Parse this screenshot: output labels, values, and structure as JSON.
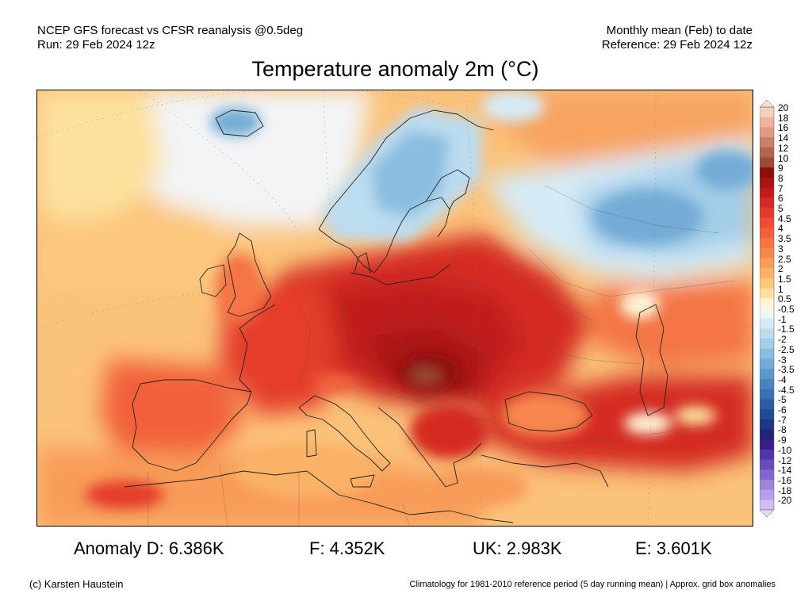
{
  "header": {
    "left_line1": "NCEP GFS forecast vs CFSR reanalysis @0.5deg",
    "left_line2": "Run: 29 Feb 2024 12z",
    "right_line1": "Monthly mean (Feb) to date",
    "right_line2": "Reference: 29 Feb 2024 12z"
  },
  "title": "Temperature anomaly 2m (°C)",
  "legend": {
    "levels": [
      {
        "label": "20",
        "color": "#f7cfc0"
      },
      {
        "label": "18",
        "color": "#eeb3a0"
      },
      {
        "label": "16",
        "color": "#df9a84"
      },
      {
        "label": "14",
        "color": "#cc7f68"
      },
      {
        "label": "12",
        "color": "#b4644e"
      },
      {
        "label": "10",
        "color": "#9c4c37"
      },
      {
        "label": "9",
        "color": "#8c0f0f"
      },
      {
        "label": "8",
        "color": "#a81414"
      },
      {
        "label": "7",
        "color": "#c01c1c"
      },
      {
        "label": "6",
        "color": "#d42a22"
      },
      {
        "label": "5",
        "color": "#e43c2c"
      },
      {
        "label": "4.5",
        "color": "#ec4e33"
      },
      {
        "label": "4",
        "color": "#f2603a"
      },
      {
        "label": "3.5",
        "color": "#f47444"
      },
      {
        "label": "3",
        "color": "#f6884e"
      },
      {
        "label": "2.5",
        "color": "#f89c58"
      },
      {
        "label": "2",
        "color": "#fab266"
      },
      {
        "label": "1.5",
        "color": "#fcc77c"
      },
      {
        "label": "1",
        "color": "#fde09c"
      },
      {
        "label": "0.5",
        "color": "#fff4d8"
      },
      {
        "label": "-0.5",
        "color": "#f2f4f6"
      },
      {
        "label": "-1",
        "color": "#d6ebf7"
      },
      {
        "label": "-1.5",
        "color": "#bcdcf0"
      },
      {
        "label": "-2",
        "color": "#a3cde8"
      },
      {
        "label": "-2.5",
        "color": "#8abde0"
      },
      {
        "label": "-3",
        "color": "#73acd6"
      },
      {
        "label": "-3.5",
        "color": "#5c98cc"
      },
      {
        "label": "-4",
        "color": "#4a84c0"
      },
      {
        "label": "-4.5",
        "color": "#3b70b2"
      },
      {
        "label": "-5",
        "color": "#2d5ca4"
      },
      {
        "label": "-6",
        "color": "#244a96"
      },
      {
        "label": "-7",
        "color": "#1d3886"
      },
      {
        "label": "-8",
        "color": "#232478"
      },
      {
        "label": "-9",
        "color": "#36218a"
      },
      {
        "label": "-10",
        "color": "#5034a8"
      },
      {
        "label": "-12",
        "color": "#6a4cbe"
      },
      {
        "label": "-14",
        "color": "#8466d0"
      },
      {
        "label": "-16",
        "color": "#9e82de"
      },
      {
        "label": "-18",
        "color": "#b89ee9"
      },
      {
        "label": "-20",
        "color": "#d2bcf3"
      }
    ],
    "top_arrow_color": "#fde0d4",
    "bottom_arrow_color": "#e4d8fa"
  },
  "stats": {
    "d": "Anomaly D: 6.386K",
    "f": "F: 4.352K",
    "uk": "UK: 2.983K",
    "e": "E: 3.601K"
  },
  "footer": {
    "left": "(c) Karsten Haustein",
    "right": "Climatology for 1981-2010 reference period (5 day running mean) | Approx. grid box anomalies"
  },
  "colors": {
    "ocean_base": "#fbc27a",
    "warm_core": "#a81414",
    "cold_core": "#8abde0"
  }
}
